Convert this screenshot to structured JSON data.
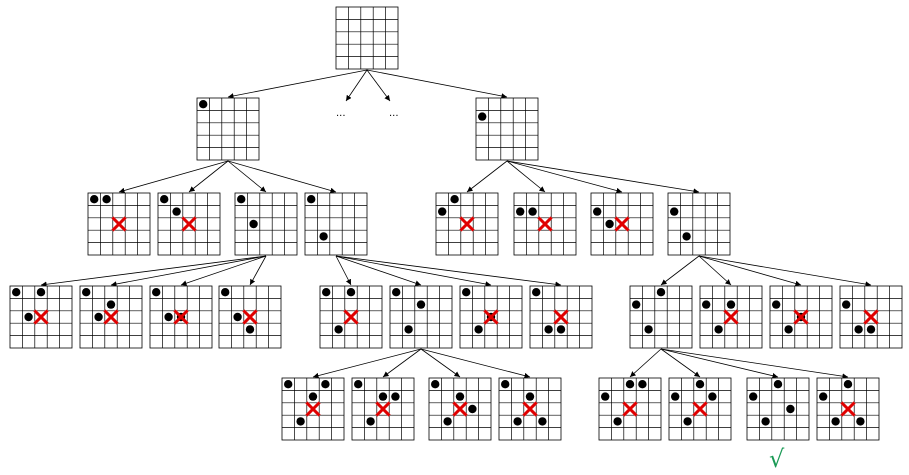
{
  "diagram": {
    "board_size": 5,
    "marker_colors": {
      "fail": "#e00000",
      "success": "#1a9a55",
      "queen": "#000000"
    },
    "boards": [
      {
        "id": "root",
        "queens": [],
        "status": "none"
      },
      {
        "id": "a",
        "queens": [
          [
            0,
            0
          ]
        ],
        "status": "none"
      },
      {
        "id": "b",
        "queens": [
          [
            0,
            1
          ]
        ],
        "status": "none"
      },
      {
        "id": "a1",
        "queens": [
          [
            0,
            0
          ],
          [
            1,
            0
          ]
        ],
        "status": "fail"
      },
      {
        "id": "a2",
        "queens": [
          [
            0,
            0
          ],
          [
            1,
            1
          ]
        ],
        "status": "fail"
      },
      {
        "id": "a3",
        "queens": [
          [
            0,
            0
          ],
          [
            1,
            2
          ]
        ],
        "status": "none"
      },
      {
        "id": "a4",
        "queens": [
          [
            0,
            0
          ],
          [
            1,
            3
          ]
        ],
        "status": "none"
      },
      {
        "id": "b1",
        "queens": [
          [
            0,
            1
          ],
          [
            1,
            0
          ]
        ],
        "status": "fail"
      },
      {
        "id": "b2",
        "queens": [
          [
            0,
            1
          ],
          [
            1,
            1
          ]
        ],
        "status": "fail"
      },
      {
        "id": "b3",
        "queens": [
          [
            0,
            1
          ],
          [
            1,
            2
          ]
        ],
        "status": "fail"
      },
      {
        "id": "b4",
        "queens": [
          [
            0,
            1
          ],
          [
            1,
            3
          ]
        ],
        "status": "none"
      },
      {
        "id": "a3-1",
        "queens": [
          [
            0,
            0
          ],
          [
            1,
            2
          ],
          [
            2,
            0
          ]
        ],
        "status": "fail"
      },
      {
        "id": "a3-2",
        "queens": [
          [
            0,
            0
          ],
          [
            1,
            2
          ],
          [
            2,
            1
          ]
        ],
        "status": "fail"
      },
      {
        "id": "a3-3",
        "queens": [
          [
            0,
            0
          ],
          [
            1,
            2
          ],
          [
            2,
            2
          ]
        ],
        "status": "fail"
      },
      {
        "id": "a3-4",
        "queens": [
          [
            0,
            0
          ],
          [
            1,
            2
          ],
          [
            2,
            3
          ]
        ],
        "status": "fail"
      },
      {
        "id": "a4-1",
        "queens": [
          [
            0,
            0
          ],
          [
            1,
            3
          ],
          [
            2,
            0
          ]
        ],
        "status": "fail"
      },
      {
        "id": "a4-2",
        "queens": [
          [
            0,
            0
          ],
          [
            1,
            3
          ],
          [
            2,
            1
          ]
        ],
        "status": "none"
      },
      {
        "id": "a4-3",
        "queens": [
          [
            0,
            0
          ],
          [
            1,
            3
          ],
          [
            2,
            2
          ]
        ],
        "status": "fail"
      },
      {
        "id": "a4-4",
        "queens": [
          [
            0,
            0
          ],
          [
            1,
            3
          ],
          [
            2,
            3
          ]
        ],
        "status": "fail"
      },
      {
        "id": "b4-1",
        "queens": [
          [
            0,
            1
          ],
          [
            1,
            3
          ],
          [
            2,
            0
          ]
        ],
        "status": "none"
      },
      {
        "id": "b4-2",
        "queens": [
          [
            0,
            1
          ],
          [
            1,
            3
          ],
          [
            2,
            1
          ]
        ],
        "status": "fail"
      },
      {
        "id": "b4-3",
        "queens": [
          [
            0,
            1
          ],
          [
            1,
            3
          ],
          [
            2,
            2
          ]
        ],
        "status": "fail"
      },
      {
        "id": "b4-4",
        "queens": [
          [
            0,
            1
          ],
          [
            1,
            3
          ],
          [
            2,
            3
          ]
        ],
        "status": "fail"
      },
      {
        "id": "a42-1",
        "queens": [
          [
            0,
            0
          ],
          [
            1,
            3
          ],
          [
            2,
            1
          ],
          [
            3,
            0
          ]
        ],
        "status": "fail"
      },
      {
        "id": "a42-2",
        "queens": [
          [
            0,
            0
          ],
          [
            1,
            3
          ],
          [
            2,
            1
          ],
          [
            3,
            1
          ]
        ],
        "status": "fail"
      },
      {
        "id": "a42-3",
        "queens": [
          [
            0,
            0
          ],
          [
            1,
            3
          ],
          [
            2,
            1
          ],
          [
            3,
            2
          ]
        ],
        "status": "fail"
      },
      {
        "id": "a42-4",
        "queens": [
          [
            0,
            0
          ],
          [
            1,
            3
          ],
          [
            2,
            1
          ],
          [
            3,
            3
          ]
        ],
        "status": "fail"
      },
      {
        "id": "b41-1",
        "queens": [
          [
            0,
            1
          ],
          [
            1,
            3
          ],
          [
            2,
            0
          ],
          [
            3,
            0
          ]
        ],
        "status": "fail"
      },
      {
        "id": "b41-2",
        "queens": [
          [
            0,
            1
          ],
          [
            1,
            3
          ],
          [
            2,
            0
          ],
          [
            3,
            1
          ]
        ],
        "status": "fail"
      },
      {
        "id": "b41-3",
        "queens": [
          [
            0,
            1
          ],
          [
            1,
            3
          ],
          [
            2,
            0
          ],
          [
            3,
            2
          ]
        ],
        "status": "success"
      },
      {
        "id": "b41-4",
        "queens": [
          [
            0,
            1
          ],
          [
            1,
            3
          ],
          [
            2,
            0
          ],
          [
            3,
            3
          ]
        ],
        "status": "fail"
      }
    ],
    "edges": [
      [
        "root",
        "a"
      ],
      [
        "root",
        "b"
      ],
      [
        "a",
        "a1"
      ],
      [
        "a",
        "a2"
      ],
      [
        "a",
        "a3"
      ],
      [
        "a",
        "a4"
      ],
      [
        "b",
        "b1"
      ],
      [
        "b",
        "b2"
      ],
      [
        "b",
        "b3"
      ],
      [
        "b",
        "b4"
      ],
      [
        "a3",
        "a3-1"
      ],
      [
        "a3",
        "a3-2"
      ],
      [
        "a3",
        "a3-3"
      ],
      [
        "a3",
        "a3-4"
      ],
      [
        "a4",
        "a4-1"
      ],
      [
        "a4",
        "a4-2"
      ],
      [
        "a4",
        "a4-3"
      ],
      [
        "a4",
        "a4-4"
      ],
      [
        "b4",
        "b4-1"
      ],
      [
        "b4",
        "b4-2"
      ],
      [
        "b4",
        "b4-3"
      ],
      [
        "b4",
        "b4-4"
      ],
      [
        "a4-2",
        "a42-1"
      ],
      [
        "a4-2",
        "a42-2"
      ],
      [
        "a4-2",
        "a42-3"
      ],
      [
        "a4-2",
        "a42-4"
      ],
      [
        "b4-1",
        "b41-1"
      ],
      [
        "b4-1",
        "b41-2"
      ],
      [
        "b4-1",
        "b41-3"
      ],
      [
        "b4-1",
        "b41-4"
      ]
    ],
    "ellipsis_text": "...",
    "success_symbol": "√"
  }
}
